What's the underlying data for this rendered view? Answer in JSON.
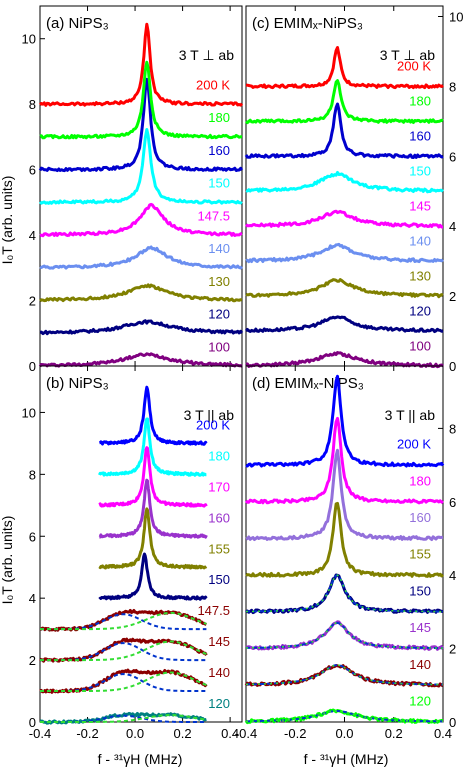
{
  "figure": {
    "ylabel": "I₀T (arb. units)",
    "xlabel": "f - ³¹γH (MHz)",
    "x_ticks": [
      "-0.4",
      "-0.2",
      "0.0",
      "0.2",
      "0.4"
    ],
    "y_ticks": [
      "0",
      "2",
      "4",
      "6",
      "8",
      "10"
    ]
  },
  "chart_data": [
    {
      "id": "a",
      "type": "line",
      "title": "(a) NiPS₃",
      "field_label": "3 T ⊥ ab",
      "xlim": [
        -0.4,
        0.45
      ],
      "ylim": [
        0,
        11
      ],
      "series": [
        {
          "temp": "100",
          "offset": 0,
          "center": 0.05,
          "amplitude": 0.35,
          "width": 0.12,
          "color": "#800080"
        },
        {
          "temp": "120",
          "offset": 1,
          "center": 0.05,
          "amplitude": 0.35,
          "width": 0.12,
          "color": "#000080"
        },
        {
          "temp": "130",
          "offset": 2,
          "center": 0.05,
          "amplitude": 0.45,
          "width": 0.1,
          "color": "#808000"
        },
        {
          "temp": "140",
          "offset": 3,
          "center": 0.07,
          "amplitude": 0.6,
          "width": 0.08,
          "color": "#6b8ff0"
        },
        {
          "temp": "147.5",
          "offset": 4,
          "center": 0.07,
          "amplitude": 0.9,
          "width": 0.06,
          "color": "#ff00ff"
        },
        {
          "temp": "150",
          "offset": 5,
          "center": 0.05,
          "amplitude": 2.2,
          "width": 0.02,
          "color": "#00ffff"
        },
        {
          "temp": "160",
          "offset": 6,
          "center": 0.05,
          "amplitude": 2.8,
          "width": 0.018,
          "color": "#0000cd"
        },
        {
          "temp": "180",
          "offset": 7,
          "center": 0.05,
          "amplitude": 2.3,
          "width": 0.018,
          "color": "#00ff00"
        },
        {
          "temp": "200 K",
          "offset": 8,
          "center": 0.05,
          "amplitude": 2.45,
          "width": 0.016,
          "color": "#ff0000"
        }
      ]
    },
    {
      "id": "b",
      "type": "line",
      "title": "(b) NiPS₃",
      "field_label": "3 T || ab",
      "xlim": [
        -0.4,
        0.45
      ],
      "ylim": [
        0,
        11.5
      ],
      "series": [
        {
          "temp": "120",
          "offset": 0,
          "center": 0.05,
          "amplitude": 0.3,
          "width": 0.18,
          "color": "#008080"
        },
        {
          "temp": "140",
          "offset": 1,
          "center": 0.05,
          "amplitude": 0.8,
          "width": 0.15,
          "color": "#8b0000"
        },
        {
          "temp": "145",
          "offset": 2,
          "center": 0.05,
          "amplitude": 0.8,
          "width": 0.15,
          "color": "#8b0000"
        },
        {
          "temp": "147.5",
          "offset": 3,
          "center": 0.05,
          "amplitude": 0.7,
          "width": 0.15,
          "color": "#8b0000"
        },
        {
          "temp": "150",
          "offset": 4,
          "center": 0.04,
          "amplitude": 1.4,
          "width": 0.015,
          "color": "#000080"
        },
        {
          "temp": "155",
          "offset": 5,
          "center": 0.05,
          "amplitude": 1.9,
          "width": 0.015,
          "color": "#808000"
        },
        {
          "temp": "160",
          "offset": 6,
          "center": 0.05,
          "amplitude": 1.8,
          "width": 0.015,
          "color": "#9932cc"
        },
        {
          "temp": "170",
          "offset": 7,
          "center": 0.05,
          "amplitude": 1.9,
          "width": 0.015,
          "color": "#ff00ff"
        },
        {
          "temp": "180",
          "offset": 8,
          "center": 0.05,
          "amplitude": 1.8,
          "width": 0.015,
          "color": "#00ffff"
        },
        {
          "temp": "200 K",
          "offset": 9,
          "center": 0.05,
          "amplitude": 1.8,
          "width": 0.015,
          "color": "#0000ff"
        }
      ]
    },
    {
      "id": "c",
      "type": "line",
      "title": "(c) EMIMₓ-NiPS₃",
      "field_label": "3 T ⊥ ab",
      "xlim": [
        -0.4,
        0.4
      ],
      "ylim": [
        0,
        10.3
      ],
      "series": [
        {
          "temp": "100",
          "offset": 0,
          "center": -0.03,
          "amplitude": 0.35,
          "width": 0.1,
          "color": "#800080"
        },
        {
          "temp": "120",
          "offset": 1,
          "center": -0.03,
          "amplitude": 0.4,
          "width": 0.08,
          "color": "#000080"
        },
        {
          "temp": "130",
          "offset": 2,
          "center": -0.03,
          "amplitude": 0.45,
          "width": 0.08,
          "color": "#808000"
        },
        {
          "temp": "140",
          "offset": 3,
          "center": -0.03,
          "amplitude": 0.45,
          "width": 0.08,
          "color": "#6b8ff0"
        },
        {
          "temp": "145",
          "offset": 4,
          "center": -0.03,
          "amplitude": 0.4,
          "width": 0.08,
          "color": "#ff00ff"
        },
        {
          "temp": "150",
          "offset": 5,
          "center": -0.03,
          "amplitude": 0.5,
          "width": 0.08,
          "color": "#00ffff"
        },
        {
          "temp": "160",
          "offset": 6,
          "center": -0.03,
          "amplitude": 1.5,
          "width": 0.018,
          "color": "#0000cd"
        },
        {
          "temp": "180",
          "offset": 7,
          "center": -0.03,
          "amplitude": 1.2,
          "width": 0.018,
          "color": "#00ff00"
        },
        {
          "temp": "200 K",
          "offset": 8,
          "center": -0.03,
          "amplitude": 1.1,
          "width": 0.016,
          "color": "#ff0000"
        }
      ]
    },
    {
      "id": "d",
      "type": "line",
      "title": "(d) EMIMₓ-NiPS₃",
      "field_label": "3 T || ab",
      "xlim": [
        -0.4,
        0.4
      ],
      "ylim": [
        0,
        9.7
      ],
      "series": [
        {
          "temp": "120",
          "offset": 0,
          "center": -0.03,
          "amplitude": 0.3,
          "width": 0.1,
          "color": "#00ff00"
        },
        {
          "temp": "140",
          "offset": 1,
          "center": -0.03,
          "amplitude": 0.55,
          "width": 0.08,
          "color": "#8b0000"
        },
        {
          "temp": "145",
          "offset": 2,
          "center": -0.03,
          "amplitude": 0.7,
          "width": 0.06,
          "color": "#9932cc"
        },
        {
          "temp": "150",
          "offset": 3,
          "center": -0.03,
          "amplitude": 1.0,
          "width": 0.04,
          "color": "#000080"
        },
        {
          "temp": "155",
          "offset": 4,
          "center": -0.03,
          "amplitude": 2.0,
          "width": 0.02,
          "color": "#808000"
        },
        {
          "temp": "160",
          "offset": 5,
          "center": -0.03,
          "amplitude": 2.4,
          "width": 0.02,
          "color": "#9370db"
        },
        {
          "temp": "180",
          "offset": 6,
          "center": -0.03,
          "amplitude": 2.3,
          "width": 0.02,
          "color": "#ff00ff"
        },
        {
          "temp": "200 K",
          "offset": 7,
          "center": -0.03,
          "amplitude": 2.4,
          "width": 0.02,
          "color": "#0000ff"
        }
      ]
    }
  ]
}
